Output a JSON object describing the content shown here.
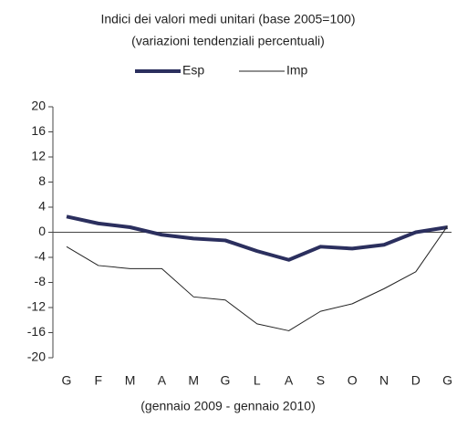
{
  "chart_data": {
    "type": "line",
    "title": "Indici dei valori medi unitari (base 2005=100)",
    "subtitle": "(variazioni tendenziali percentuali)",
    "x_label": "(gennaio 2009 - gennaio 2010)",
    "categories": [
      "G",
      "F",
      "M",
      "A",
      "M",
      "G",
      "L",
      "A",
      "S",
      "O",
      "N",
      "D",
      "G"
    ],
    "series": [
      {
        "name": "Esp",
        "color": "#2b2f5e",
        "values": [
          2.5,
          1.4,
          0.8,
          -0.4,
          -1.0,
          -1.3,
          -3.0,
          -4.4,
          -2.3,
          -2.6,
          -2.0,
          0.0,
          0.8
        ]
      },
      {
        "name": "Imp",
        "color": "#222222",
        "values": [
          -2.3,
          -5.3,
          -5.8,
          -5.8,
          -10.3,
          -10.8,
          -14.6,
          -15.7,
          -12.6,
          -11.4,
          -9.0,
          -6.3,
          1.0
        ]
      }
    ],
    "ylim": [
      -20,
      20
    ],
    "yticks": [
      -20,
      -16,
      -12,
      -8,
      -4,
      0,
      4,
      8,
      12,
      16,
      20
    ],
    "grid": false,
    "legend": "top"
  }
}
